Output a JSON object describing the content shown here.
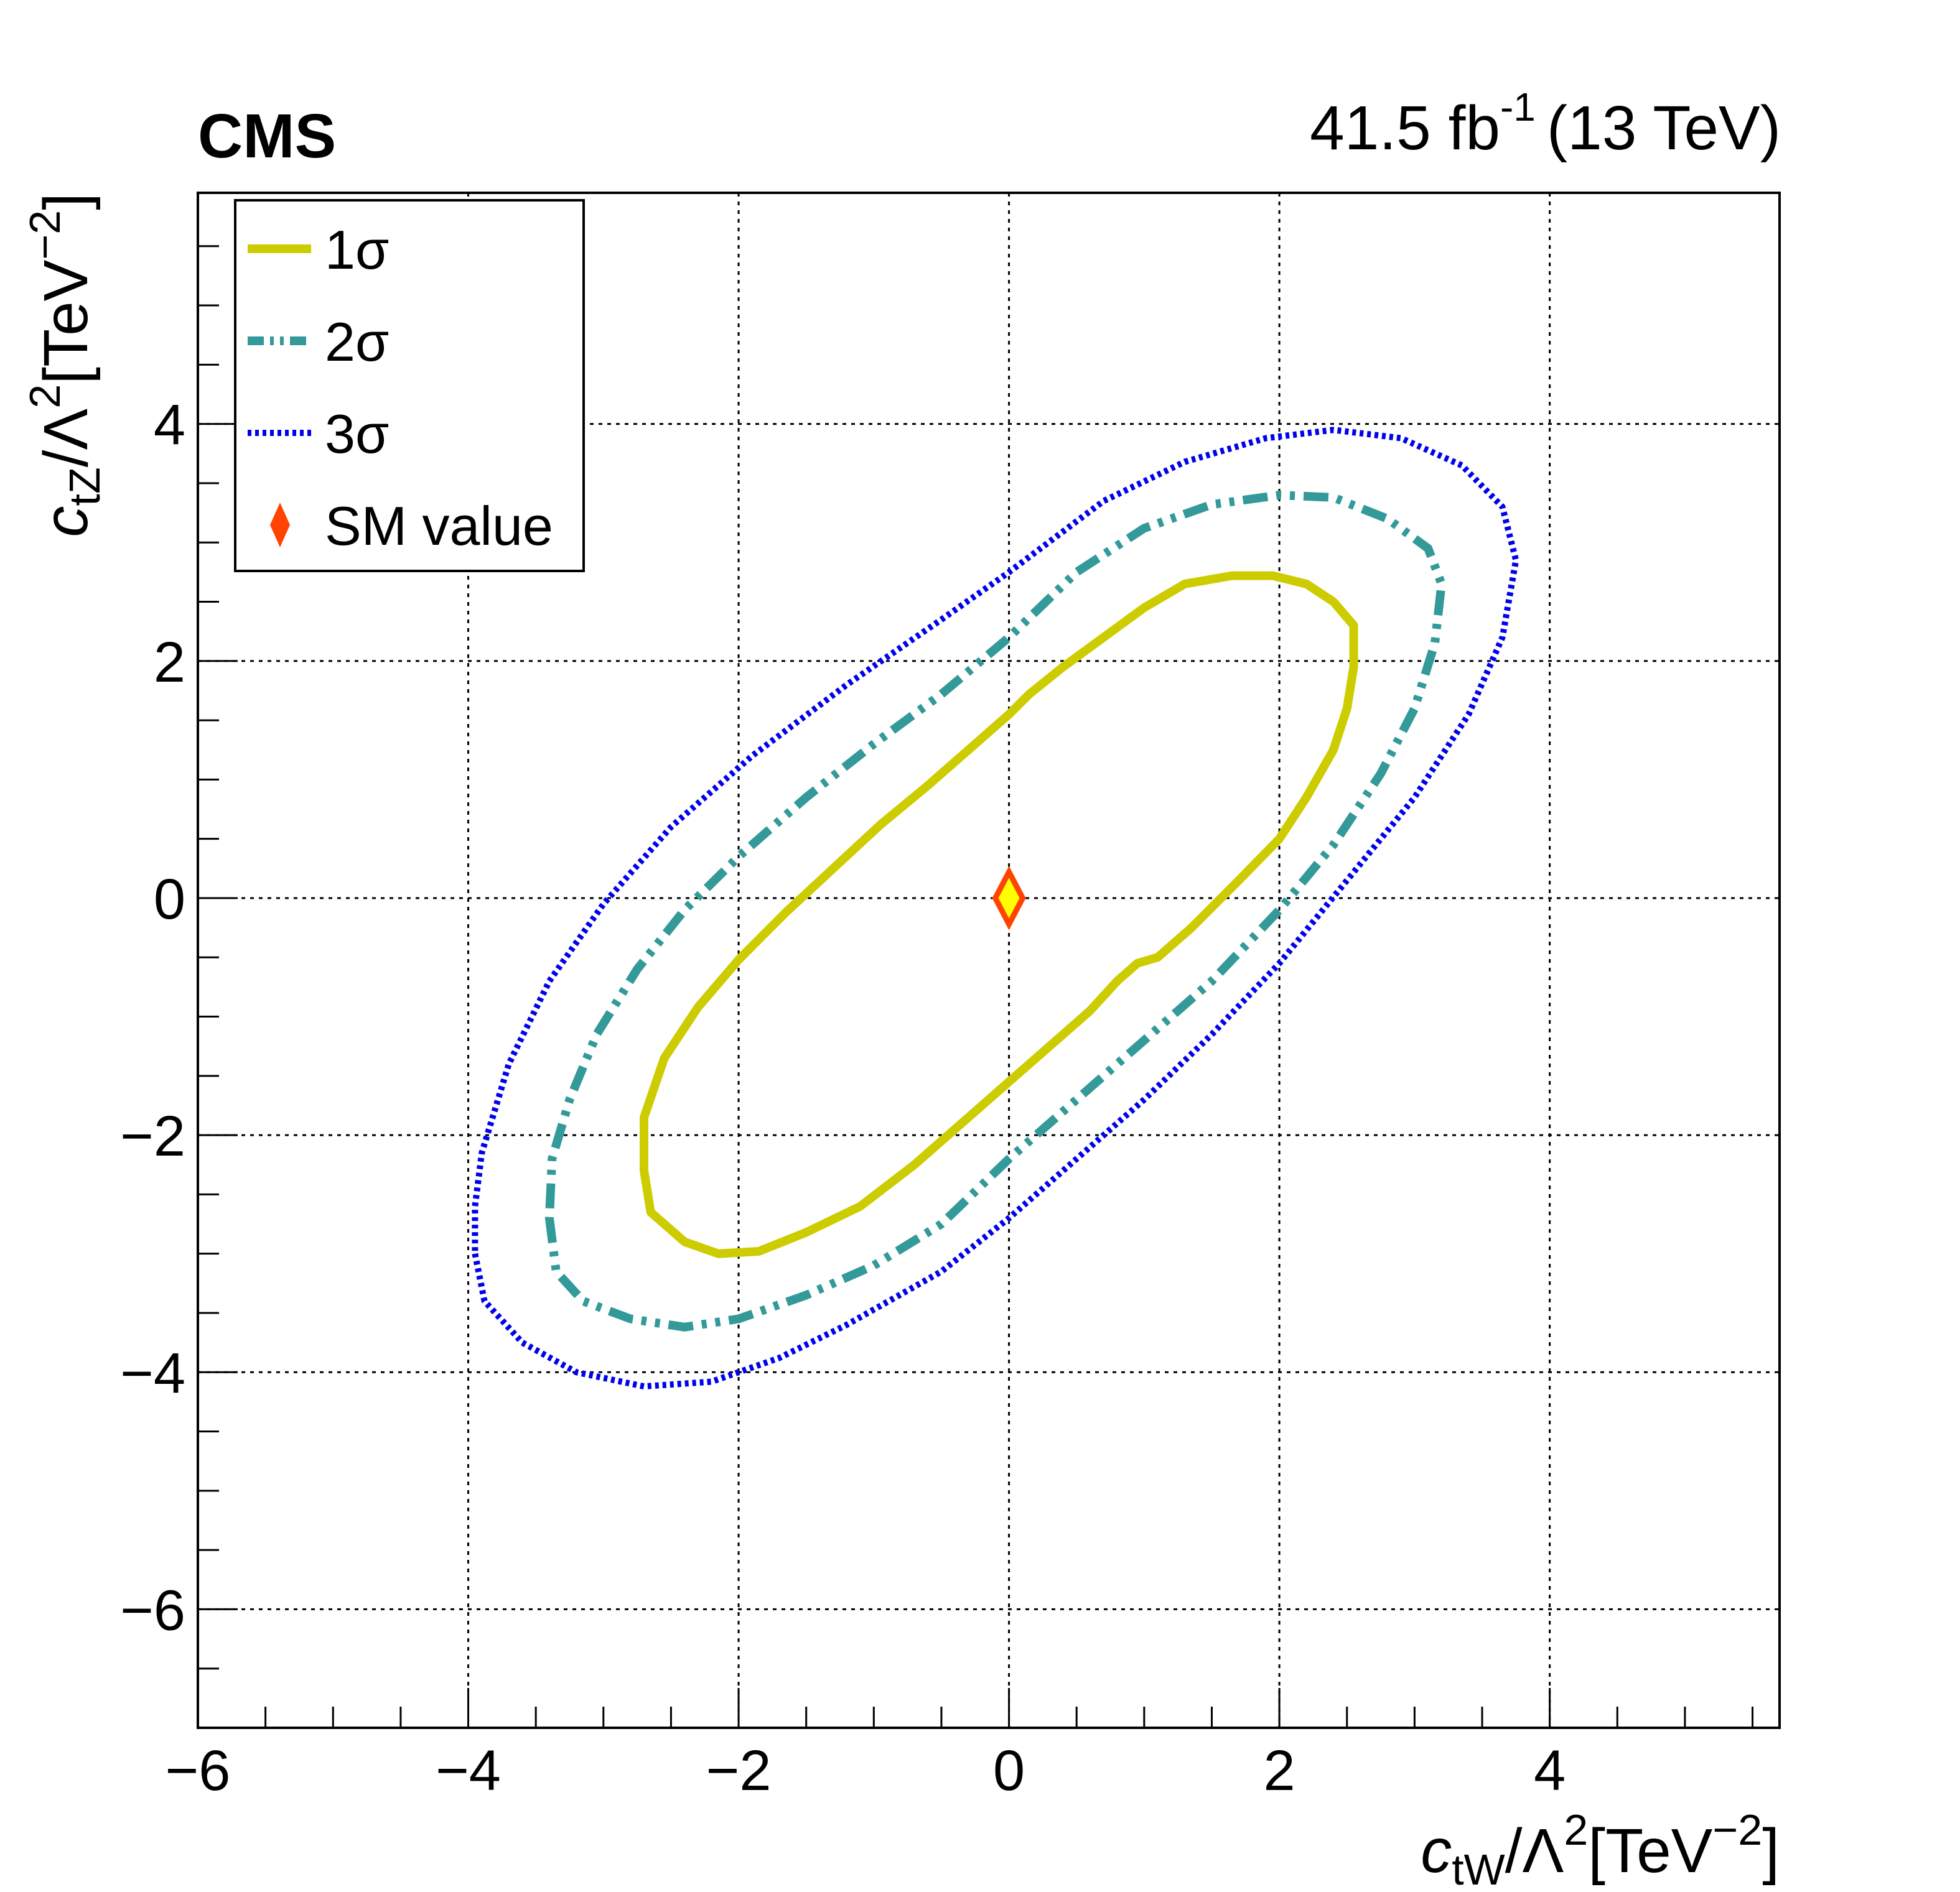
{
  "header": {
    "experiment": "CMS",
    "lumi_value": "41.5 fb",
    "lumi_exponent": "-1",
    "energy": "(13 TeV)"
  },
  "axes": {
    "x_title": {
      "coef": "c",
      "sub": "tW",
      "middle": "/Λ",
      "sup1": "2",
      "bracket": "[TeV",
      "sup2": "−2",
      "close": "]"
    },
    "y_title": {
      "coef": "c",
      "sub": "tZ",
      "middle": "/Λ",
      "sup1": "2",
      "bracket": "[TeV",
      "sup2": "−2",
      "close": "]"
    }
  },
  "legend": {
    "items": [
      {
        "label": "1σ",
        "style": "solid",
        "color": "#cccc00"
      },
      {
        "label": "2σ",
        "style": "dashdot",
        "color": "#339999"
      },
      {
        "label": "3σ",
        "style": "dotted",
        "color": "#0000ee"
      },
      {
        "label": "SM value",
        "style": "marker",
        "color": "#ff4400"
      }
    ]
  },
  "chart_data": {
    "type": "contour",
    "xlim": [
      -6,
      5.7
    ],
    "ylim": [
      -7,
      5.95
    ],
    "x_ticks": [
      -6,
      -4,
      -2,
      0,
      2,
      4
    ],
    "y_ticks": [
      -6,
      -4,
      -2,
      0,
      2,
      4
    ],
    "x_tick_labels": [
      "−6",
      "−4",
      "−2",
      "0",
      "2",
      "4"
    ],
    "y_tick_labels": [
      "−6",
      "−4",
      "−2",
      "0",
      "2",
      "4"
    ],
    "grid": true,
    "legend_position": "top-left",
    "series": [
      {
        "name": "1σ",
        "color": "#cccc00",
        "style": "solid",
        "points": [
          [
            -2.7,
            -2.3
          ],
          [
            -2.65,
            -2.65
          ],
          [
            -2.4,
            -2.9
          ],
          [
            -2.15,
            -3.0
          ],
          [
            -1.85,
            -2.98
          ],
          [
            -1.5,
            -2.82
          ],
          [
            -1.1,
            -2.6
          ],
          [
            -0.7,
            -2.25
          ],
          [
            -0.3,
            -1.85
          ],
          [
            0,
            -1.55
          ],
          [
            0.3,
            -1.25
          ],
          [
            0.6,
            -0.95
          ],
          [
            0.8,
            -0.7
          ],
          [
            0.95,
            -0.55
          ],
          [
            1.1,
            -0.5
          ],
          [
            1.35,
            -0.25
          ],
          [
            1.7,
            0.15
          ],
          [
            2.0,
            0.5
          ],
          [
            2.2,
            0.85
          ],
          [
            2.4,
            1.25
          ],
          [
            2.5,
            1.6
          ],
          [
            2.55,
            1.95
          ],
          [
            2.55,
            2.3
          ],
          [
            2.4,
            2.5
          ],
          [
            2.2,
            2.65
          ],
          [
            1.95,
            2.72
          ],
          [
            1.65,
            2.72
          ],
          [
            1.3,
            2.65
          ],
          [
            1.0,
            2.45
          ],
          [
            0.7,
            2.2
          ],
          [
            0.4,
            1.95
          ],
          [
            0.15,
            1.72
          ],
          [
            0,
            1.55
          ],
          [
            -0.3,
            1.25
          ],
          [
            -0.6,
            0.95
          ],
          [
            -0.95,
            0.62
          ],
          [
            -1.3,
            0.25
          ],
          [
            -1.65,
            -0.12
          ],
          [
            -2.0,
            -0.52
          ],
          [
            -2.3,
            -0.92
          ],
          [
            -2.55,
            -1.35
          ],
          [
            -2.7,
            -1.85
          ],
          [
            -2.7,
            -2.3
          ]
        ]
      },
      {
        "name": "2σ",
        "color": "#339999",
        "style": "dashdot",
        "points": [
          [
            -3.4,
            -2.7
          ],
          [
            -3.35,
            -3.15
          ],
          [
            -3.15,
            -3.4
          ],
          [
            -2.8,
            -3.55
          ],
          [
            -2.4,
            -3.62
          ],
          [
            -2.0,
            -3.55
          ],
          [
            -1.5,
            -3.35
          ],
          [
            -1.0,
            -3.1
          ],
          [
            -0.5,
            -2.75
          ],
          [
            0,
            -2.2
          ],
          [
            0.5,
            -1.7
          ],
          [
            1.0,
            -1.2
          ],
          [
            1.5,
            -0.7
          ],
          [
            2.0,
            -0.1
          ],
          [
            2.4,
            0.45
          ],
          [
            2.75,
            1.05
          ],
          [
            3.0,
            1.6
          ],
          [
            3.15,
            2.15
          ],
          [
            3.2,
            2.65
          ],
          [
            3.1,
            2.95
          ],
          [
            2.8,
            3.2
          ],
          [
            2.4,
            3.38
          ],
          [
            2.0,
            3.4
          ],
          [
            1.5,
            3.32
          ],
          [
            1.0,
            3.12
          ],
          [
            0.5,
            2.75
          ],
          [
            0,
            2.2
          ],
          [
            -0.5,
            1.72
          ],
          [
            -1.0,
            1.3
          ],
          [
            -1.5,
            0.85
          ],
          [
            -2.0,
            0.35
          ],
          [
            -2.4,
            -0.1
          ],
          [
            -2.75,
            -0.6
          ],
          [
            -3.05,
            -1.15
          ],
          [
            -3.25,
            -1.7
          ],
          [
            -3.38,
            -2.2
          ],
          [
            -3.4,
            -2.7
          ]
        ]
      },
      {
        "name": "3σ",
        "color": "#0000ee",
        "style": "dotted",
        "points": [
          [
            -3.95,
            -3.0
          ],
          [
            -3.88,
            -3.4
          ],
          [
            -3.6,
            -3.75
          ],
          [
            -3.2,
            -4.0
          ],
          [
            -2.7,
            -4.12
          ],
          [
            -2.2,
            -4.08
          ],
          [
            -1.7,
            -3.88
          ],
          [
            -1.2,
            -3.6
          ],
          [
            -0.5,
            -3.15
          ],
          [
            0,
            -2.7
          ],
          [
            0.5,
            -2.2
          ],
          [
            1.0,
            -1.7
          ],
          [
            1.5,
            -1.15
          ],
          [
            2.0,
            -0.55
          ],
          [
            2.5,
            0.15
          ],
          [
            3.0,
            0.85
          ],
          [
            3.4,
            1.55
          ],
          [
            3.65,
            2.2
          ],
          [
            3.75,
            2.85
          ],
          [
            3.65,
            3.3
          ],
          [
            3.35,
            3.65
          ],
          [
            2.9,
            3.88
          ],
          [
            2.4,
            3.95
          ],
          [
            1.9,
            3.88
          ],
          [
            1.3,
            3.68
          ],
          [
            0.7,
            3.35
          ],
          [
            0,
            2.75
          ],
          [
            -0.5,
            2.35
          ],
          [
            -1.2,
            1.8
          ],
          [
            -1.9,
            1.2
          ],
          [
            -2.5,
            0.6
          ],
          [
            -3.0,
            -0.05
          ],
          [
            -3.4,
            -0.7
          ],
          [
            -3.7,
            -1.4
          ],
          [
            -3.9,
            -2.15
          ],
          [
            -3.95,
            -2.6
          ],
          [
            -3.95,
            -3.0
          ]
        ]
      }
    ],
    "sm_point": {
      "x": 0,
      "y": 0,
      "label": "SM value",
      "fill": "#ffff00",
      "edge": "#ff4400"
    }
  }
}
